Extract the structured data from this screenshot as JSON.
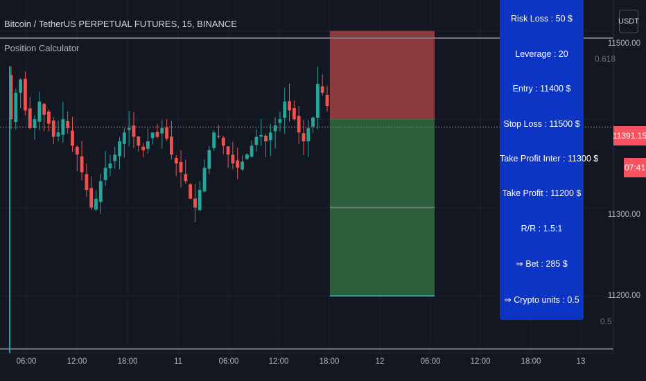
{
  "header": {
    "title": "Bitcoin / TetherUS PERPETUAL FUTURES, 15, BINANCE",
    "indicator": "Position Calculator"
  },
  "price_axis": {
    "currency": "USDT",
    "labels": [
      "11500.00",
      "11300.00",
      "11200.00"
    ],
    "current_price": "11391.15",
    "countdown": "07:41"
  },
  "fib_levels": [
    "0.618",
    "0.5"
  ],
  "time_axis": {
    "labels": [
      "06:00",
      "12:00",
      "18:00",
      "11",
      "06:00",
      "12:00",
      "18:00",
      "12",
      "06:00",
      "12:00",
      "18:00",
      "13"
    ]
  },
  "calculator": {
    "risk_loss": "Risk Loss : 50 $",
    "leverage": "Leverage : 20",
    "entry": "Entry : 11400 $",
    "stop_loss": "Stop Loss : 11500 $",
    "take_profit_inter": "Take Profit Inter : 11300 $",
    "take_profit": "Take Profit : 11200 $",
    "risk_reward": "R/R : 1.5:1",
    "bet": "⇒ Bet : 285 $",
    "crypto_units": "⇒ Crypto units : 0.5"
  },
  "colors": {
    "background": "#131722",
    "up": "#26a69a",
    "down": "#ef5350",
    "stop_zone": "#8b3a3e",
    "target_zone": "#2c5e3b",
    "panel": "#0c35c4"
  },
  "chart_data": {
    "type": "candlestick",
    "symbol": "BTCUSDT",
    "interval": "15",
    "close_series": [
      11400,
      11430,
      11445,
      11410,
      11390,
      11400,
      11420,
      11405,
      11395,
      11380,
      11385,
      11400,
      11390,
      11370,
      11360,
      11340,
      11320,
      11300,
      11310,
      11330,
      11345,
      11350,
      11360,
      11375,
      11385,
      11390,
      11380,
      11370,
      11365,
      11375,
      11385,
      11380,
      11390,
      11378,
      11360,
      11350,
      11340,
      11330,
      11310,
      11300,
      11320,
      11345,
      11365,
      11385,
      11380,
      11370,
      11360,
      11350,
      11345,
      11352,
      11360,
      11370,
      11380,
      11382,
      11375,
      11385,
      11393,
      11400,
      11420,
      11410,
      11400,
      11385,
      11375,
      11390,
      11402,
      11440,
      11430,
      11415
    ],
    "current_price": 11391.15,
    "y_range": [
      11135,
      11535
    ],
    "position": {
      "entry": 11400,
      "stop_loss": 11500,
      "take_profit_inter": 11300,
      "take_profit": 11200
    },
    "fib_levels": [
      {
        "label": "0.618",
        "price": 11492
      },
      {
        "label": "0.5",
        "price": 11140
      }
    ]
  }
}
